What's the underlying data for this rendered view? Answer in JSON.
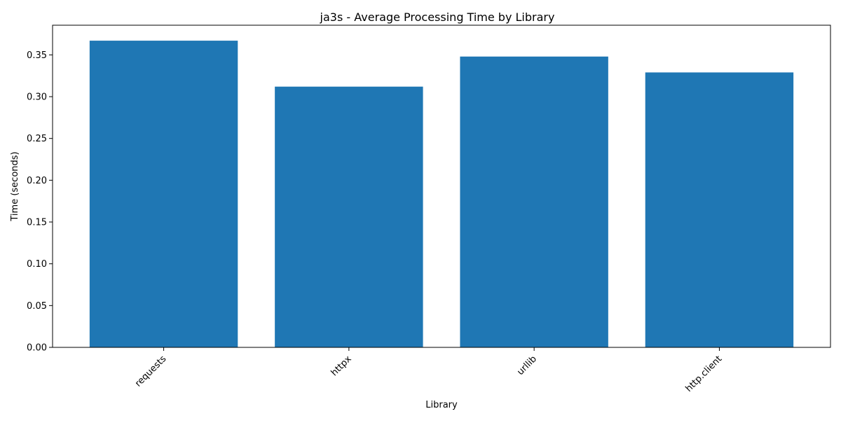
{
  "chart_data": {
    "type": "bar",
    "title": "ja3s - Average Processing Time by Library",
    "xlabel": "Library",
    "ylabel": "Time (seconds)",
    "categories": [
      "requests",
      "httpx",
      "urllib",
      "http.client"
    ],
    "values": [
      0.367,
      0.312,
      0.348,
      0.329
    ],
    "ylim": [
      0,
      0.3855
    ],
    "yticks": [
      0.0,
      0.05,
      0.1,
      0.15,
      0.2,
      0.25,
      0.3,
      0.35
    ],
    "ytick_labels": [
      "0.00",
      "0.05",
      "0.10",
      "0.15",
      "0.20",
      "0.25",
      "0.30",
      "0.35"
    ],
    "grid": false,
    "legend": "none",
    "x_tick_rotation_deg": 45,
    "bar_color": "#1f77b4"
  }
}
